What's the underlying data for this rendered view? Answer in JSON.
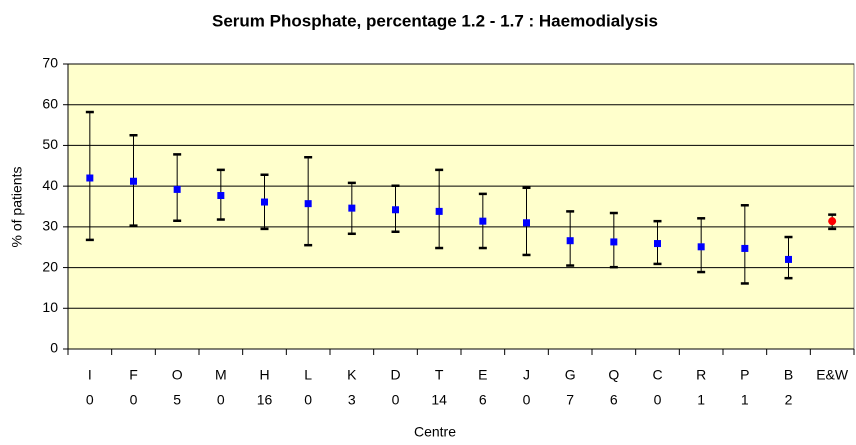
{
  "chart_data": {
    "type": "errorbar",
    "title": "Serum Phosphate, percentage 1.2 - 1.7 : Haemodialysis",
    "x_label": "Centre",
    "y_label": "% of patients",
    "categories": [
      "I",
      "F",
      "O",
      "M",
      "H",
      "L",
      "K",
      "D",
      "T",
      "E",
      "J",
      "G",
      "Q",
      "C",
      "R",
      "P",
      "B",
      "E&W"
    ],
    "subcategories": [
      "0",
      "0",
      "5",
      "0",
      "16",
      "0",
      "3",
      "0",
      "14",
      "6",
      "0",
      "7",
      "6",
      "0",
      "1",
      "1",
      "2",
      null
    ],
    "values": [
      42,
      41.2,
      39.2,
      37.7,
      36.1,
      35.7,
      34.6,
      34.2,
      33.8,
      31.4,
      31,
      26.6,
      26.3,
      25.9,
      25.1,
      24.7,
      22,
      31.4
    ],
    "lower": [
      26.8,
      30.3,
      31.5,
      31.8,
      29.5,
      25.5,
      28.3,
      28.8,
      24.8,
      24.8,
      23.1,
      20.5,
      20.1,
      20.9,
      18.9,
      16.1,
      17.4,
      29.5
    ],
    "upper": [
      58.2,
      52.5,
      47.8,
      44,
      42.8,
      47.1,
      40.8,
      40.1,
      44,
      38.1,
      39.6,
      33.8,
      33.4,
      31.4,
      32.1,
      35.3,
      27.5,
      33
    ],
    "marker_colors": [
      "#0000ff",
      "#0000ff",
      "#0000ff",
      "#0000ff",
      "#0000ff",
      "#0000ff",
      "#0000ff",
      "#0000ff",
      "#0000ff",
      "#0000ff",
      "#0000ff",
      "#0000ff",
      "#0000ff",
      "#0000ff",
      "#0000ff",
      "#0000ff",
      "#0000ff",
      "#ff0000"
    ],
    "plot_background": "#ffffcc",
    "ylim": [
      0,
      70
    ],
    "yticks": [
      0,
      10,
      20,
      30,
      40,
      50,
      60,
      70
    ],
    "grid": true
  }
}
